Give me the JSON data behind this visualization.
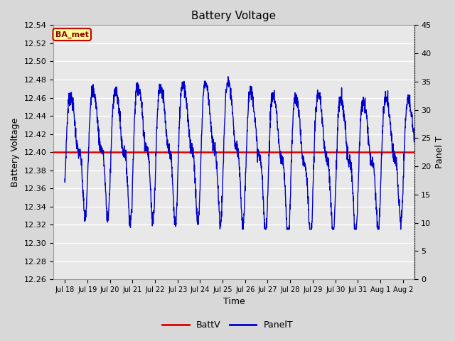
{
  "title": "Battery Voltage",
  "xlabel": "Time",
  "ylabel_left": "Battery Voltage",
  "ylabel_right": "Panel T",
  "ylim_left": [
    12.26,
    12.54
  ],
  "ylim_right": [
    0,
    45
  ],
  "yticks_left": [
    12.26,
    12.28,
    12.3,
    12.32,
    12.34,
    12.36,
    12.38,
    12.4,
    12.42,
    12.44,
    12.46,
    12.48,
    12.5,
    12.52,
    12.54
  ],
  "yticks_right": [
    0,
    5,
    10,
    15,
    20,
    25,
    30,
    35,
    40,
    45
  ],
  "battv_value": 12.4,
  "battv_color": "#dd0000",
  "panelt_color": "#0000cc",
  "background_color": "#d8d8d8",
  "plot_bg_color": "#e8e8e8",
  "annotation_label": "BA_met",
  "annotation_bg": "#ffff99",
  "annotation_border": "#cc0000",
  "legend_entries": [
    "BattV",
    "PanelT"
  ],
  "x_tick_labels": [
    "Jul 18",
    "Jul 19",
    "Jul 20",
    "Jul 21",
    "Jul 22",
    "Jul 23",
    "Jul 24",
    "Jul 25",
    "Jul 26",
    "Jul 27",
    "Jul 28",
    "Jul 29",
    "Jul 30",
    "Jul 31",
    "Aug 1",
    "Aug 2"
  ]
}
